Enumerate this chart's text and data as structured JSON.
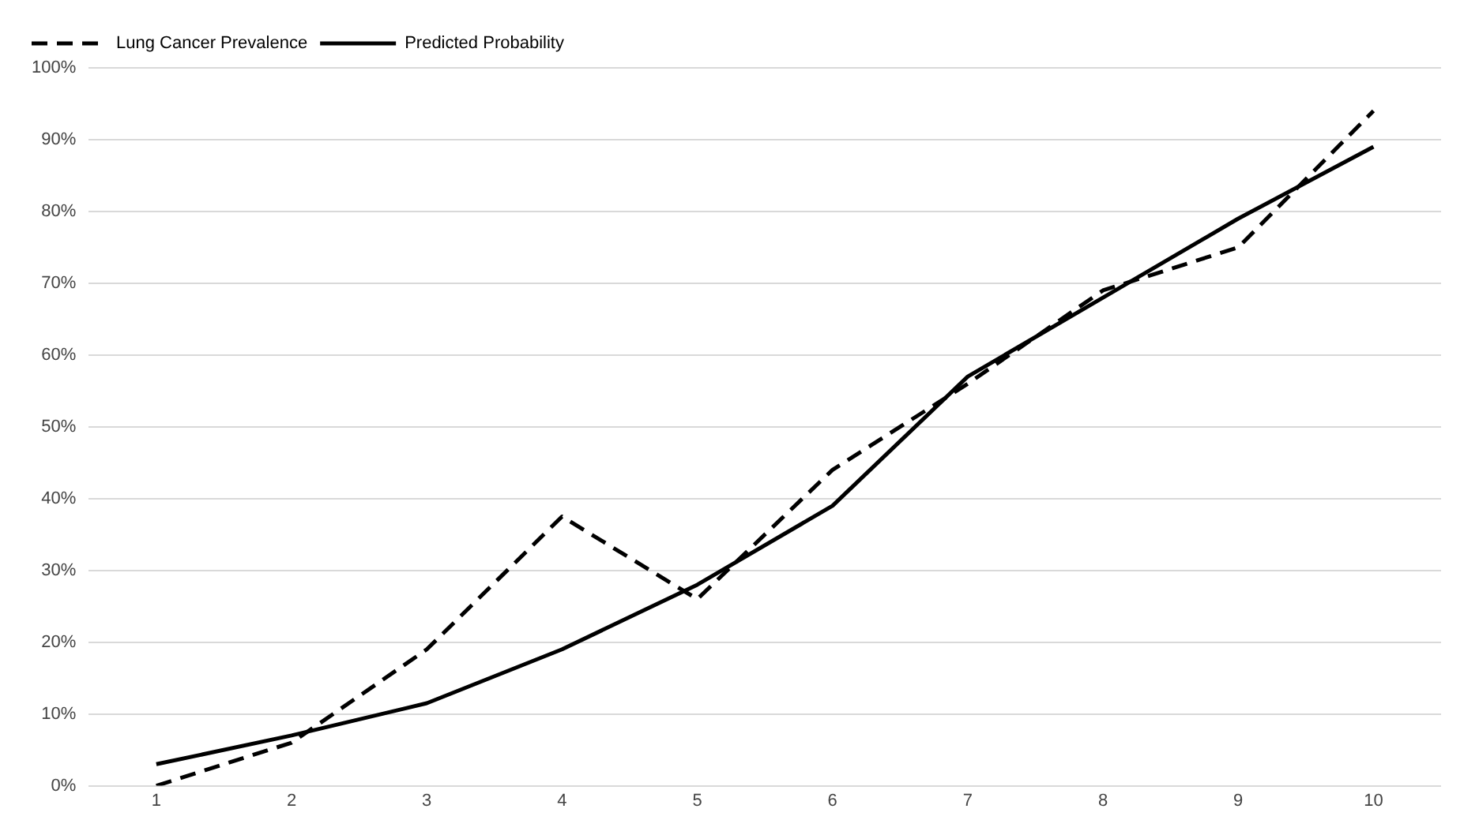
{
  "chart_data": {
    "type": "line",
    "categories": [
      "1",
      "2",
      "3",
      "4",
      "5",
      "6",
      "7",
      "8",
      "9",
      "10"
    ],
    "series": [
      {
        "name": "Lung Cancer Prevalence",
        "color": "#000000",
        "line_style": "dashed",
        "values": [
          0,
          6,
          19,
          37.5,
          26,
          44,
          56,
          69,
          75,
          94
        ]
      },
      {
        "name": "Predicted Probability",
        "color": "#000000",
        "line_style": "solid",
        "values": [
          3,
          7,
          11.5,
          19,
          28,
          39,
          57,
          68,
          79,
          89
        ]
      }
    ],
    "ylim": [
      0,
      100
    ],
    "yticks": [
      {
        "value": 0,
        "label": "0%"
      },
      {
        "value": 10,
        "label": "10%"
      },
      {
        "value": 20,
        "label": "20%"
      },
      {
        "value": 30,
        "label": "30%"
      },
      {
        "value": 40,
        "label": "40%"
      },
      {
        "value": 50,
        "label": "50%"
      },
      {
        "value": 60,
        "label": "60%"
      },
      {
        "value": 70,
        "label": "70%"
      },
      {
        "value": 80,
        "label": "80%"
      },
      {
        "value": 90,
        "label": "90%"
      },
      {
        "value": 100,
        "label": "100%"
      }
    ],
    "grid": "y",
    "legend": "top left",
    "marker": "none"
  }
}
